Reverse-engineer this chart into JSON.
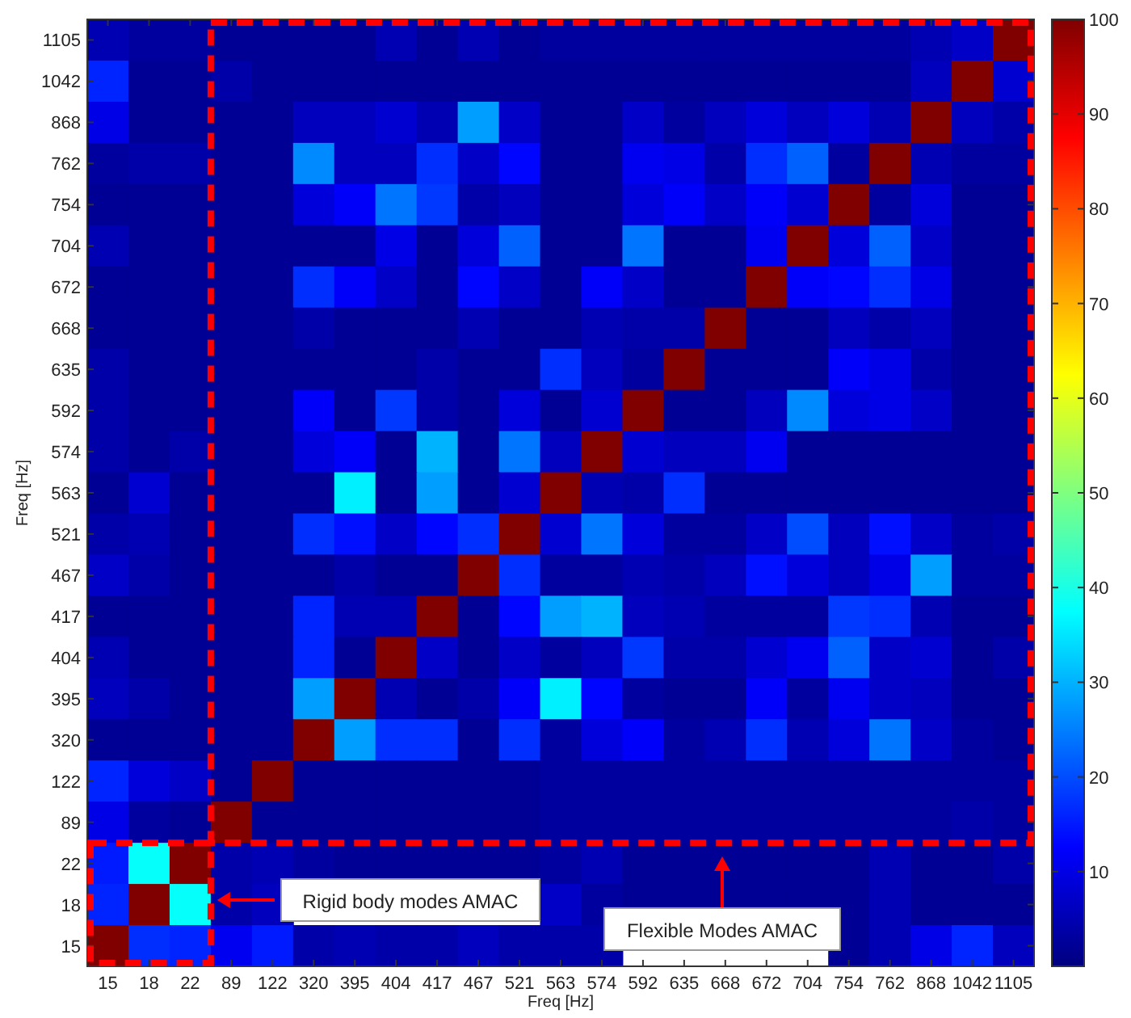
{
  "chart_data": {
    "type": "heatmap",
    "xlabel": "Freq [Hz]",
    "ylabel": "Freq [Hz]",
    "categories": [
      "15",
      "18",
      "22",
      "89",
      "122",
      "320",
      "395",
      "404",
      "417",
      "467",
      "521",
      "563",
      "574",
      "592",
      "635",
      "668",
      "672",
      "704",
      "754",
      "762",
      "868",
      "1042",
      "1105"
    ],
    "y_categories": [
      "1105",
      "1042",
      "868",
      "762",
      "754",
      "704",
      "672",
      "668",
      "635",
      "592",
      "574",
      "563",
      "521",
      "467",
      "417",
      "404",
      "395",
      "320",
      "122",
      "89",
      "22",
      "18",
      "15"
    ],
    "cells": [
      [
        5,
        3,
        3,
        2,
        2,
        2,
        2,
        5,
        2,
        5,
        2,
        3,
        3,
        3,
        3,
        3,
        3,
        3,
        3,
        3,
        5,
        7,
        100
      ],
      [
        16,
        2,
        2,
        4,
        2,
        2,
        2,
        2,
        2,
        2,
        2,
        2,
        2,
        2,
        2,
        2,
        2,
        2,
        2,
        2,
        6,
        100,
        8
      ],
      [
        10,
        2,
        2,
        2,
        2,
        6,
        6,
        8,
        5,
        28,
        7,
        2,
        2,
        7,
        3,
        6,
        9,
        6,
        9,
        5,
        100,
        6,
        4
      ],
      [
        3,
        4,
        4,
        2,
        2,
        26,
        6,
        6,
        17,
        7,
        13,
        2,
        2,
        11,
        10,
        4,
        17,
        22,
        3,
        100,
        5,
        3,
        3
      ],
      [
        2,
        2,
        2,
        2,
        2,
        9,
        12,
        24,
        18,
        4,
        6,
        2,
        2,
        9,
        12,
        7,
        12,
        8,
        100,
        3,
        9,
        2,
        2
      ],
      [
        5,
        2,
        2,
        2,
        2,
        2,
        2,
        10,
        2,
        9,
        22,
        2,
        2,
        24,
        2,
        2,
        11,
        100,
        9,
        22,
        7,
        2,
        2
      ],
      [
        2,
        2,
        2,
        2,
        2,
        17,
        12,
        7,
        2,
        13,
        7,
        2,
        12,
        7,
        2,
        2,
        100,
        12,
        13,
        17,
        10,
        2,
        2
      ],
      [
        2,
        2,
        2,
        2,
        2,
        4,
        2,
        2,
        2,
        5,
        2,
        2,
        5,
        4,
        4,
        100,
        2,
        2,
        6,
        4,
        6,
        2,
        2
      ],
      [
        4,
        2,
        2,
        2,
        2,
        2,
        2,
        2,
        4,
        2,
        2,
        17,
        6,
        3,
        100,
        2,
        2,
        2,
        12,
        10,
        4,
        2,
        2
      ],
      [
        4,
        2,
        2,
        2,
        2,
        12,
        2,
        18,
        4,
        2,
        9,
        2,
        8,
        100,
        2,
        2,
        6,
        26,
        9,
        10,
        7,
        2,
        2
      ],
      [
        4,
        2,
        4,
        2,
        2,
        9,
        12,
        2,
        30,
        2,
        24,
        6,
        100,
        8,
        6,
        6,
        11,
        2,
        2,
        2,
        2,
        2,
        2
      ],
      [
        2,
        8,
        2,
        2,
        2,
        2,
        36,
        2,
        28,
        2,
        8,
        100,
        5,
        4,
        17,
        2,
        2,
        2,
        2,
        2,
        2,
        2,
        2
      ],
      [
        4,
        5,
        2,
        2,
        2,
        17,
        14,
        7,
        13,
        17,
        100,
        8,
        24,
        9,
        3,
        3,
        7,
        20,
        6,
        14,
        7,
        3,
        4
      ],
      [
        7,
        4,
        2,
        2,
        2,
        2,
        4,
        2,
        2,
        100,
        17,
        3,
        3,
        5,
        4,
        6,
        14,
        9,
        6,
        10,
        28,
        3,
        3
      ],
      [
        2,
        2,
        2,
        2,
        2,
        16,
        5,
        5,
        100,
        2,
        13,
        28,
        30,
        6,
        5,
        3,
        3,
        3,
        18,
        17,
        5,
        2,
        2
      ],
      [
        5,
        2,
        2,
        2,
        2,
        16,
        2,
        100,
        7,
        2,
        7,
        3,
        6,
        18,
        4,
        4,
        8,
        11,
        22,
        7,
        8,
        2,
        4
      ],
      [
        6,
        4,
        2,
        2,
        2,
        28,
        100,
        5,
        2,
        4,
        12,
        36,
        13,
        3,
        2,
        2,
        12,
        3,
        11,
        7,
        6,
        2,
        2
      ],
      [
        2,
        2,
        2,
        2,
        2,
        100,
        28,
        17,
        17,
        2,
        17,
        3,
        9,
        12,
        3,
        5,
        17,
        5,
        9,
        24,
        7,
        3,
        2
      ],
      [
        16,
        9,
        7,
        2,
        100,
        2,
        2,
        2,
        2,
        2,
        2,
        3,
        3,
        3,
        3,
        3,
        3,
        3,
        3,
        3,
        3,
        3,
        3
      ],
      [
        10,
        3,
        2,
        100,
        2,
        2,
        2,
        2,
        2,
        2,
        2,
        3,
        3,
        3,
        3,
        3,
        3,
        3,
        3,
        3,
        3,
        4,
        3
      ],
      [
        15,
        38,
        100,
        4,
        5,
        3,
        2,
        2,
        2,
        2,
        2,
        3,
        5,
        2,
        2,
        2,
        2,
        2,
        2,
        5,
        2,
        2,
        4
      ],
      [
        16,
        100,
        38,
        4,
        6,
        null,
        null,
        null,
        null,
        null,
        null,
        7,
        3,
        2,
        2,
        2,
        2,
        2,
        2,
        5,
        2,
        2,
        2
      ],
      [
        100,
        17,
        16,
        11,
        15,
        4,
        5,
        4,
        4,
        6,
        4,
        4,
        4,
        null,
        null,
        null,
        null,
        null,
        2,
        5,
        10,
        16,
        6
      ]
    ],
    "clim": [
      0,
      100
    ],
    "cticks": [
      10,
      20,
      30,
      40,
      50,
      60,
      70,
      80,
      90,
      100
    ],
    "annotations": [
      "Rigid body modes AMAC",
      "Flexible Modes AMAC"
    ]
  }
}
